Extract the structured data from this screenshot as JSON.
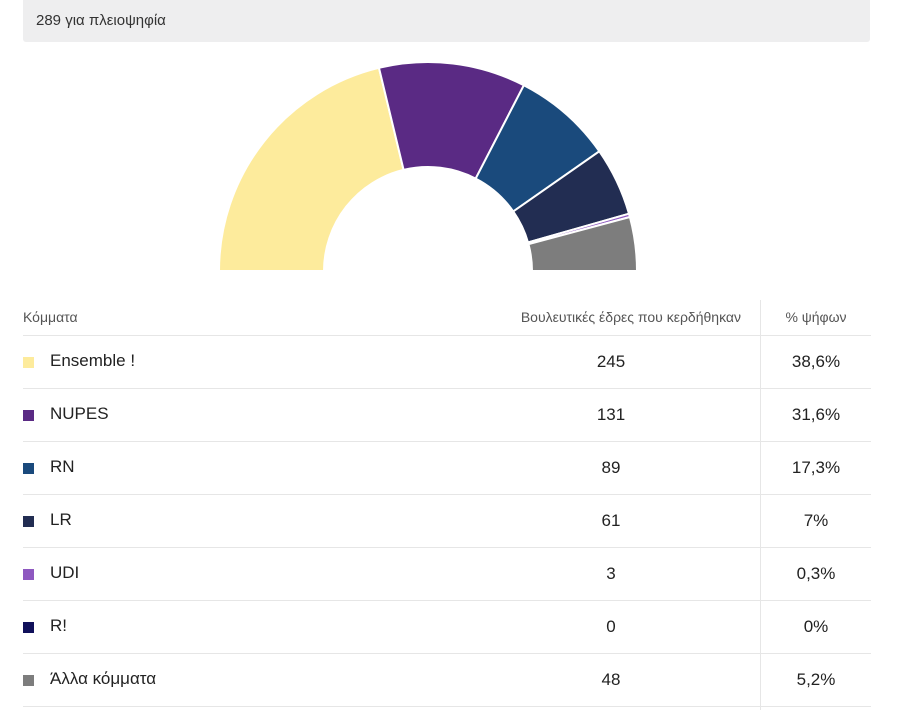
{
  "header": {
    "majority_text": "289 για πλειοψηφία"
  },
  "table": {
    "col_party": "Κόμματα",
    "col_seats": "Βουλευτικές έδρες που κερδήθηκαν",
    "col_votes": "% ψήφων"
  },
  "chart_data": {
    "type": "pie",
    "variant": "half-donut",
    "title": "",
    "total_seats": 577,
    "categories": [
      "Ensemble !",
      "NUPES",
      "RN",
      "LR",
      "UDI",
      "R!",
      "Άλλα κόμματα"
    ],
    "values": [
      245,
      131,
      89,
      61,
      3,
      0,
      48
    ],
    "vote_share": [
      "38,6%",
      "31,6%",
      "17,3%",
      "7%",
      "0,3%",
      "0%",
      "5,2%"
    ],
    "colors": [
      "#fdeb9c",
      "#5a2a84",
      "#1a4a7c",
      "#222d52",
      "#8e58c0",
      "#10105a",
      "#7d7d7d"
    ]
  }
}
